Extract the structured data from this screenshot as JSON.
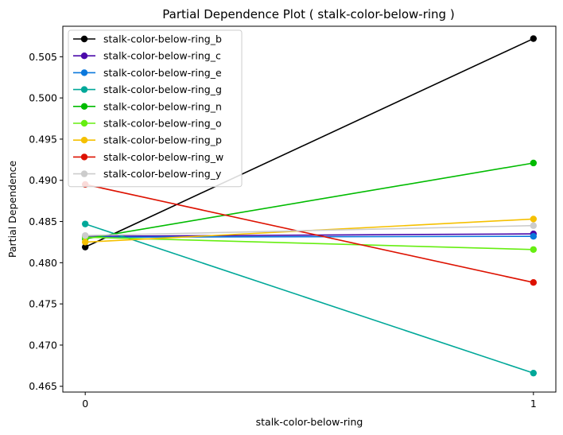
{
  "chart_data": {
    "type": "line",
    "title": "Partial Dependence Plot ( stalk-color-below-ring )",
    "xlabel": "stalk-color-below-ring",
    "ylabel": "Partial Dependence",
    "x": [
      0,
      1
    ],
    "x_ticks": [
      "0",
      "1"
    ],
    "y_ticks": [
      "0.465",
      "0.470",
      "0.475",
      "0.480",
      "0.485",
      "0.490",
      "0.495",
      "0.500",
      "0.505"
    ],
    "ylim": [
      0.4643,
      0.5087
    ],
    "xlim": [
      -0.05,
      1.05
    ],
    "grid": false,
    "legend_position": "upper-left",
    "series": [
      {
        "name": "stalk-color-below-ring_b",
        "color": "#000000",
        "values": [
          0.4819,
          0.5072
        ]
      },
      {
        "name": "stalk-color-below-ring_c",
        "color": "#4b0aaa",
        "values": [
          0.4832,
          0.4835
        ]
      },
      {
        "name": "stalk-color-below-ring_e",
        "color": "#0a78dc",
        "values": [
          0.4831,
          0.4832
        ]
      },
      {
        "name": "stalk-color-below-ring_g",
        "color": "#00a899",
        "values": [
          0.4847,
          0.4666
        ]
      },
      {
        "name": "stalk-color-below-ring_n",
        "color": "#00bb00",
        "values": [
          0.4829,
          0.4921
        ]
      },
      {
        "name": "stalk-color-below-ring_o",
        "color": "#66ee11",
        "values": [
          0.4831,
          0.4816
        ]
      },
      {
        "name": "stalk-color-below-ring_p",
        "color": "#f5c000",
        "values": [
          0.4825,
          0.4853
        ]
      },
      {
        "name": "stalk-color-below-ring_w",
        "color": "#dd1100",
        "values": [
          0.4895,
          0.4776
        ]
      },
      {
        "name": "stalk-color-below-ring_y",
        "color": "#cccccc",
        "values": [
          0.4833,
          0.4845
        ]
      }
    ]
  }
}
